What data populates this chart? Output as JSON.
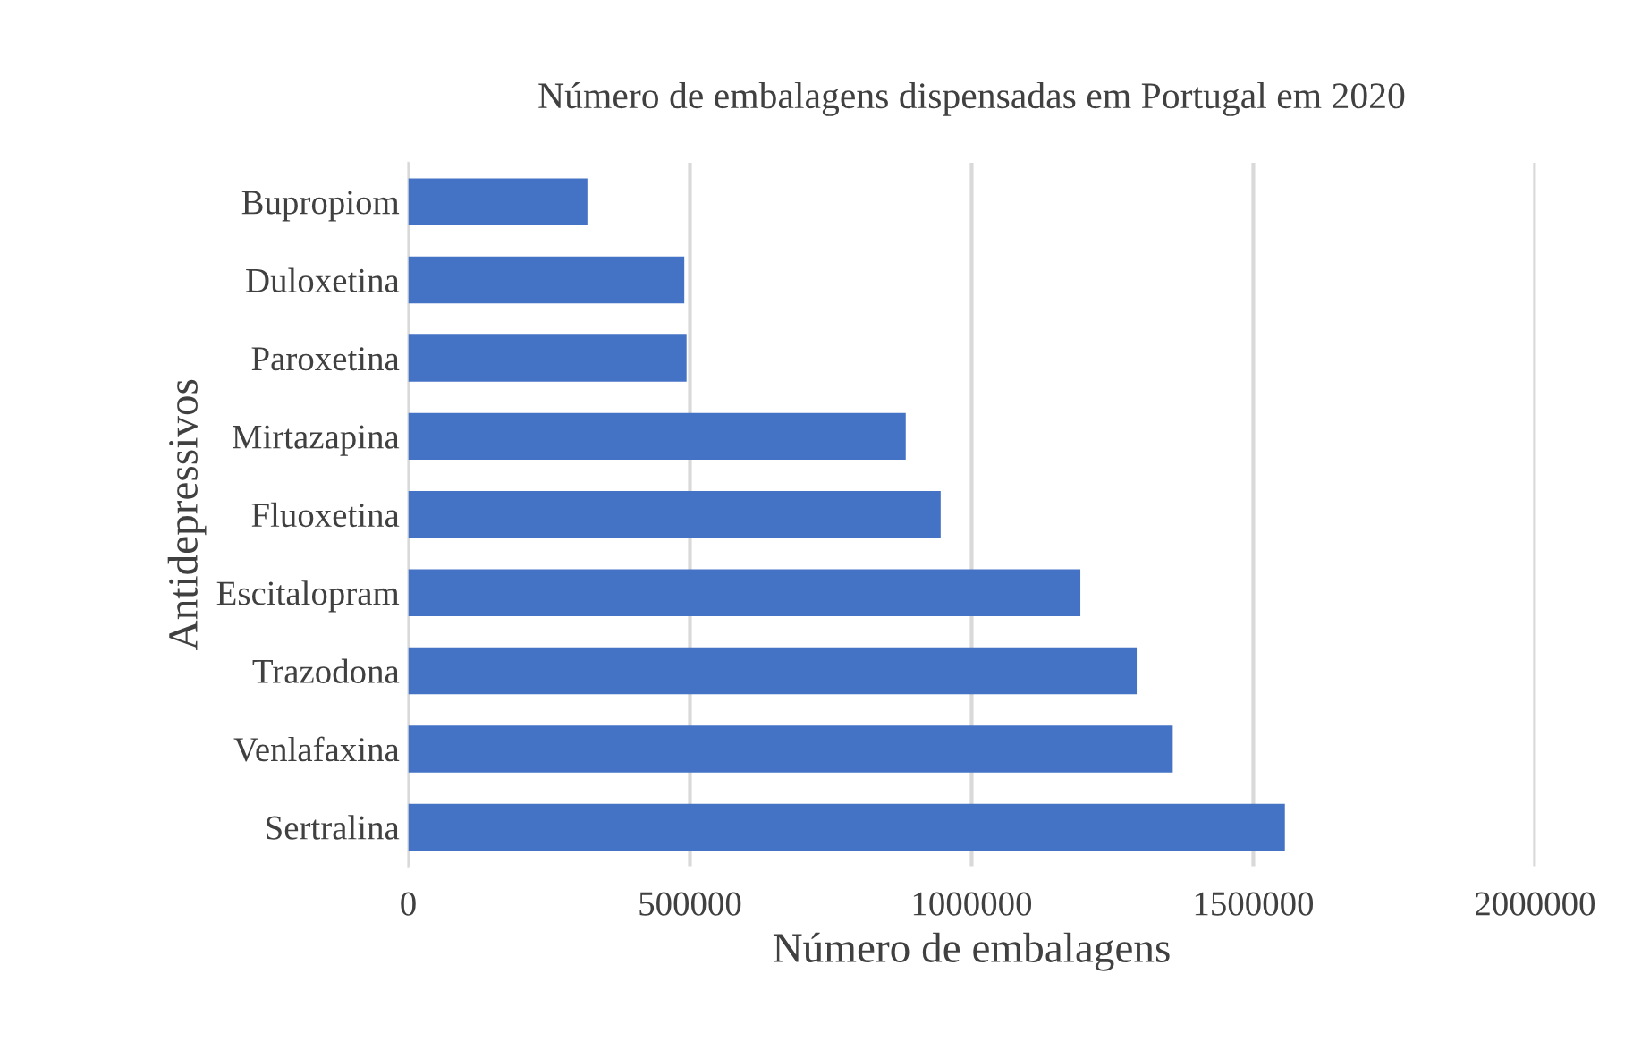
{
  "chart_data": {
    "type": "bar",
    "orientation": "horizontal",
    "title": "Número de embalagens dispensadas em Portugal em 2020",
    "xlabel": "Número de embalagens",
    "ylabel": "Antidepressivos",
    "categories": [
      "Bupropiom",
      "Duloxetina",
      "Paroxetina",
      "Mirtazapina",
      "Fluoxetina",
      "Escitalopram",
      "Trazodona",
      "Venlafaxina",
      "Sertralina"
    ],
    "values": [
      318000,
      490000,
      494000,
      883000,
      945000,
      1193000,
      1293000,
      1357000,
      1556000
    ],
    "color": "#4472c4",
    "xlim": [
      0,
      2000000
    ],
    "xticks": [
      0,
      500000,
      1000000,
      1500000,
      2000000
    ],
    "grid": "x",
    "legend": false
  }
}
